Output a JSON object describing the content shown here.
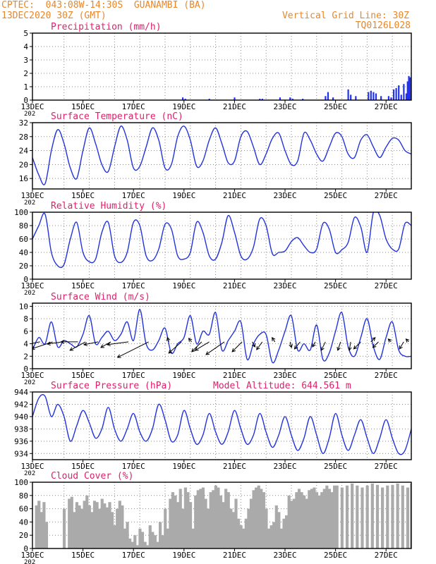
{
  "header": {
    "line1_left": "CPTEC:  043:08W-14:30S  GUANAMBI (BA)",
    "line2_left": "13DEC2020 30Z (GMT)",
    "line1_right": "Vertical Grid Line: 30Z",
    "line2_right": "TQ0126L028",
    "color": "#e8872a"
  },
  "x_axis": {
    "ticks": [
      "13DEC",
      "15DEC",
      "17DEC",
      "19DEC",
      "21DEC",
      "23DEC",
      "25DEC",
      "27DEC"
    ],
    "tick_days": [
      0,
      2,
      4,
      6,
      8,
      10,
      12,
      14
    ],
    "sublabel": "202",
    "days_total": 15
  },
  "colors": {
    "title": "#e0206a",
    "line": "#2233dd",
    "bars": "#2233ee",
    "cloud": "#aaaaaa",
    "grid": "#888888",
    "arrow": "#000000"
  },
  "chart_data": [
    {
      "type": "bar",
      "title": "Precipitation (mm/h)",
      "ylim": [
        0,
        5
      ],
      "yticks": [
        0,
        1,
        2,
        3,
        4,
        5
      ],
      "x_unit": "days after 13DEC2020 00Z",
      "x": [
        5.95,
        6.05,
        7.0,
        8.0,
        9.0,
        9.1,
        9.8,
        10.2,
        10.3,
        10.7,
        11.6,
        11.7,
        11.9,
        12.5,
        12.6,
        12.8,
        13.3,
        13.4,
        13.5,
        13.6,
        13.8,
        14.1,
        14.2,
        14.3,
        14.4,
        14.5,
        14.6,
        14.7,
        14.8,
        14.85,
        14.9,
        14.95
      ],
      "values": [
        0.2,
        0.1,
        0.1,
        0.2,
        0.1,
        0.1,
        0.2,
        0.2,
        0.1,
        0.1,
        0.3,
        0.6,
        0.2,
        0.8,
        0.4,
        0.3,
        0.6,
        0.7,
        0.6,
        0.5,
        0.3,
        0.3,
        0.2,
        0.8,
        0.9,
        1.1,
        0.4,
        1.2,
        0.5,
        1.4,
        1.8,
        1.7
      ]
    },
    {
      "type": "line",
      "title": "Surface Temperature (nC)",
      "ylim": [
        13,
        32
      ],
      "yticks": [
        16,
        20,
        24,
        28,
        32
      ],
      "x_unit": "days after 13DEC2020 00Z",
      "x": [
        0,
        0.25,
        0.5,
        0.75,
        1,
        1.25,
        1.5,
        1.75,
        2,
        2.25,
        2.5,
        2.75,
        3,
        3.25,
        3.5,
        3.75,
        4,
        4.25,
        4.5,
        4.75,
        5,
        5.25,
        5.5,
        5.75,
        6,
        6.25,
        6.5,
        6.75,
        7,
        7.25,
        7.5,
        7.75,
        8,
        8.25,
        8.5,
        8.75,
        9,
        9.25,
        9.5,
        9.75,
        10,
        10.25,
        10.5,
        10.75,
        11,
        11.25,
        11.5,
        11.75,
        12,
        12.25,
        12.5,
        12.75,
        13,
        13.25,
        13.5,
        13.75,
        14,
        14.25,
        14.5,
        14.75,
        15
      ],
      "values": [
        22,
        17,
        14.5,
        24,
        30,
        26,
        19,
        16,
        24,
        30.5,
        26,
        20,
        18,
        25,
        31,
        27,
        19,
        19.5,
        25,
        30.5,
        27,
        19,
        20,
        28,
        31,
        27,
        19.5,
        21,
        27,
        30.5,
        26,
        20.5,
        21,
        28,
        29.5,
        25,
        20,
        23,
        27.5,
        29,
        24,
        20,
        21,
        29,
        27,
        23,
        21,
        25,
        29,
        28,
        23,
        22,
        27,
        28.5,
        25,
        22,
        25,
        27.5,
        27,
        24,
        23
      ]
    },
    {
      "type": "line",
      "title": "Relative Humidity (%)",
      "ylim": [
        0,
        100
      ],
      "yticks": [
        0,
        20,
        40,
        60,
        80,
        100
      ],
      "x_unit": "days after 13DEC2020 00Z",
      "x": [
        0,
        0.25,
        0.5,
        0.75,
        1,
        1.25,
        1.5,
        1.75,
        2,
        2.25,
        2.5,
        2.75,
        3,
        3.25,
        3.5,
        3.75,
        4,
        4.25,
        4.5,
        4.75,
        5,
        5.25,
        5.5,
        5.75,
        6,
        6.25,
        6.5,
        6.75,
        7,
        7.25,
        7.5,
        7.75,
        8,
        8.25,
        8.5,
        8.75,
        9,
        9.25,
        9.5,
        9.75,
        10,
        10.25,
        10.5,
        10.75,
        11,
        11.25,
        11.5,
        11.75,
        12,
        12.25,
        12.5,
        12.75,
        13,
        13.25,
        13.5,
        13.75,
        14,
        14.25,
        14.5,
        14.75,
        15
      ],
      "values": [
        60,
        80,
        97,
        40,
        20,
        22,
        60,
        85,
        40,
        26,
        30,
        70,
        85,
        35,
        25,
        40,
        85,
        80,
        35,
        28,
        45,
        82,
        75,
        35,
        30,
        40,
        85,
        70,
        35,
        30,
        55,
        95,
        70,
        35,
        30,
        48,
        90,
        80,
        38,
        40,
        42,
        56,
        62,
        50,
        40,
        45,
        83,
        75,
        40,
        44,
        55,
        92,
        78,
        40,
        100,
        95,
        60,
        45,
        45,
        83,
        80
      ]
    },
    {
      "type": "line",
      "title": "Surface Wind (m/s)",
      "ylim": [
        0,
        10.5
      ],
      "yticks": [
        0,
        2,
        4,
        6,
        8,
        10
      ],
      "x_unit": "days after 13DEC2020 00Z",
      "x": [
        0,
        0.25,
        0.5,
        0.75,
        1,
        1.25,
        1.5,
        1.75,
        2,
        2.25,
        2.5,
        2.75,
        3,
        3.25,
        3.5,
        3.75,
        4,
        4.25,
        4.5,
        4.75,
        5,
        5.25,
        5.5,
        5.75,
        6,
        6.25,
        6.5,
        6.75,
        7,
        7.25,
        7.5,
        7.75,
        8,
        8.25,
        8.5,
        8.75,
        9,
        9.25,
        9.5,
        9.75,
        10,
        10.25,
        10.5,
        10.75,
        11,
        11.25,
        11.5,
        11.75,
        12,
        12.25,
        12.5,
        12.75,
        13,
        13.25,
        13.5,
        13.75,
        14,
        14.25,
        14.5,
        14.75,
        15
      ],
      "values": [
        3,
        5,
        4,
        7.5,
        3.5,
        4.5,
        4,
        3.5,
        5.5,
        8.5,
        4,
        5,
        6,
        4.5,
        5.5,
        7.5,
        4.5,
        9.5,
        4,
        3,
        4.5,
        6.5,
        2.5,
        4,
        5,
        8.5,
        4,
        6,
        5.5,
        9,
        3,
        4.5,
        6,
        7.5,
        1.5,
        4,
        5.5,
        5.5,
        1,
        3,
        6,
        8.5,
        3,
        4,
        3,
        7,
        1.5,
        2.5,
        6,
        9,
        3.5,
        2,
        5,
        8,
        3.5,
        1.5,
        5,
        7.5,
        3,
        2,
        2
      ]
    },
    {
      "type": "line",
      "title": "Surface Pressure (hPa)",
      "annotation": "Model Altitude: 644.561 m",
      "ylim": [
        933,
        944
      ],
      "yticks": [
        934,
        936,
        938,
        940,
        942,
        944
      ],
      "x_unit": "days after 13DEC2020 00Z",
      "x": [
        0,
        0.25,
        0.5,
        0.75,
        1,
        1.25,
        1.5,
        1.75,
        2,
        2.25,
        2.5,
        2.75,
        3,
        3.25,
        3.5,
        3.75,
        4,
        4.25,
        4.5,
        4.75,
        5,
        5.25,
        5.5,
        5.75,
        6,
        6.25,
        6.5,
        6.75,
        7,
        7.25,
        7.5,
        7.75,
        8,
        8.25,
        8.5,
        8.75,
        9,
        9.25,
        9.5,
        9.75,
        10,
        10.25,
        10.5,
        10.75,
        11,
        11.25,
        11.5,
        11.75,
        12,
        12.25,
        12.5,
        12.75,
        13,
        13.25,
        13.5,
        13.75,
        14,
        14.25,
        14.5,
        14.75,
        15
      ],
      "values": [
        940,
        943,
        943.3,
        940,
        942,
        940,
        936,
        938.5,
        941,
        939,
        936.5,
        938,
        941.5,
        938,
        936,
        938,
        940.5,
        937.5,
        936,
        938,
        942,
        939.5,
        936,
        937,
        941,
        938,
        935.5,
        937,
        940.5,
        937.5,
        935.5,
        937.5,
        941,
        938,
        935.5,
        937,
        940.5,
        937.5,
        935,
        937,
        940,
        937,
        934.5,
        936.5,
        940,
        937,
        934,
        936.5,
        940.5,
        937,
        934.5,
        937,
        939.5,
        936.5,
        934,
        936.5,
        939.5,
        936.5,
        934,
        934.5,
        938
      ]
    },
    {
      "type": "area",
      "title": "Cloud Cover (%)",
      "ylim": [
        0,
        100
      ],
      "yticks": [
        0,
        20,
        40,
        60,
        80,
        100
      ],
      "x_unit": "days after 13DEC2020 00Z",
      "x": [
        0,
        0.1,
        0.2,
        0.3,
        0.4,
        0.5,
        0.6,
        1.1,
        1.2,
        1.4,
        1.5,
        1.6,
        1.7,
        1.8,
        1.9,
        2.0,
        2.1,
        2.2,
        2.3,
        2.4,
        2.5,
        2.6,
        2.7,
        2.8,
        2.9,
        3.0,
        3.1,
        3.2,
        3.3,
        3.4,
        3.5,
        3.6,
        3.7,
        3.8,
        3.9,
        4.0,
        4.1,
        4.2,
        4.3,
        4.4,
        4.5,
        4.6,
        4.7,
        4.8,
        4.9,
        5.0,
        5.1,
        5.2,
        5.3,
        5.4,
        5.5,
        5.6,
        5.7,
        5.8,
        5.9,
        6.0,
        6.1,
        6.2,
        6.3,
        6.4,
        6.5,
        6.6,
        6.7,
        6.8,
        6.9,
        7.0,
        7.1,
        7.2,
        7.3,
        7.4,
        7.5,
        7.6,
        7.7,
        7.8,
        7.9,
        8.0,
        8.1,
        8.2,
        8.3,
        8.4,
        8.5,
        8.6,
        8.7,
        8.8,
        8.9,
        9.0,
        9.1,
        9.2,
        9.3,
        9.4,
        9.5,
        9.6,
        9.7,
        9.8,
        9.9,
        10.0,
        10.1,
        10.2,
        10.3,
        10.4,
        10.5,
        10.6,
        10.7,
        10.8,
        10.9,
        11.0,
        11.1,
        11.2,
        11.3,
        11.4,
        11.5,
        11.6,
        11.7,
        11.8,
        11.9,
        12.0,
        12.2,
        12.4,
        12.6,
        12.8,
        13.0,
        13.2,
        13.4,
        13.6,
        13.8,
        14.0,
        14.2,
        14.4,
        14.6,
        14.8,
        14.95
      ],
      "values": [
        0,
        65,
        72,
        55,
        70,
        40,
        0,
        0,
        60,
        75,
        78,
        55,
        70,
        65,
        60,
        72,
        80,
        65,
        55,
        72,
        70,
        60,
        75,
        68,
        62,
        70,
        55,
        35,
        60,
        72,
        65,
        30,
        40,
        15,
        10,
        20,
        5,
        30,
        25,
        10,
        5,
        35,
        25,
        20,
        10,
        40,
        20,
        60,
        30,
        75,
        85,
        80,
        70,
        90,
        60,
        92,
        85,
        70,
        30,
        80,
        88,
        90,
        92,
        75,
        60,
        85,
        88,
        95,
        92,
        80,
        70,
        90,
        85,
        60,
        55,
        75,
        45,
        35,
        30,
        45,
        60,
        75,
        88,
        92,
        95,
        90,
        85,
        60,
        30,
        35,
        40,
        65,
        55,
        30,
        45,
        50,
        80,
        72,
        75,
        85,
        90,
        85,
        80,
        75,
        88,
        90,
        92,
        85,
        80,
        85,
        90,
        95,
        90,
        85,
        95,
        95,
        92,
        95,
        98,
        95,
        92,
        95,
        98,
        96,
        92,
        95,
        96,
        98,
        95,
        92,
        98
      ]
    }
  ],
  "wind_arrows": [
    {
      "x": 0.3,
      "dx": 26,
      "dy": 5
    },
    {
      "x": 0.8,
      "dx": 30,
      "dy": 10
    },
    {
      "x": 1.2,
      "dx": 22,
      "dy": 3
    },
    {
      "x": 1.8,
      "dx": 24,
      "dy": 0
    },
    {
      "x": 2.1,
      "dx": 22,
      "dy": 12
    },
    {
      "x": 2.6,
      "dx": 20,
      "dy": 4
    },
    {
      "x": 3.1,
      "dx": 14,
      "dy": 8
    },
    {
      "x": 3.8,
      "dx": 30,
      "dy": 4
    },
    {
      "x": 4.6,
      "dx": 44,
      "dy": 22
    },
    {
      "x": 5.4,
      "dx": 2,
      "dy": -6
    },
    {
      "x": 5.9,
      "dx": 18,
      "dy": 16
    },
    {
      "x": 6.3,
      "dx": 4,
      "dy": -5
    },
    {
      "x": 6.7,
      "dx": 14,
      "dy": 14
    },
    {
      "x": 7.0,
      "dx": 20,
      "dy": 12
    },
    {
      "x": 7.6,
      "dx": 26,
      "dy": 18
    },
    {
      "x": 8.3,
      "dx": 14,
      "dy": 14
    },
    {
      "x": 8.7,
      "dx": -4,
      "dy": 7
    },
    {
      "x": 9.1,
      "dx": 8,
      "dy": 11
    },
    {
      "x": 9.6,
      "dx": 4,
      "dy": -6
    },
    {
      "x": 10.2,
      "dx": -2,
      "dy": 8
    },
    {
      "x": 10.6,
      "dx": 8,
      "dy": 10
    },
    {
      "x": 11.2,
      "dx": 4,
      "dy": 7
    },
    {
      "x": 11.6,
      "dx": 6,
      "dy": 12
    },
    {
      "x": 12.2,
      "dx": 4,
      "dy": 12
    },
    {
      "x": 12.6,
      "dx": 2,
      "dy": 12
    },
    {
      "x": 13.0,
      "dx": 10,
      "dy": 10
    },
    {
      "x": 13.4,
      "dx": -6,
      "dy": -6
    },
    {
      "x": 13.7,
      "dx": 8,
      "dy": 8
    },
    {
      "x": 14.2,
      "dx": 4,
      "dy": -4
    },
    {
      "x": 14.7,
      "dx": 6,
      "dy": 10
    },
    {
      "x": 14.9,
      "dx": 4,
      "dy": -4
    }
  ]
}
